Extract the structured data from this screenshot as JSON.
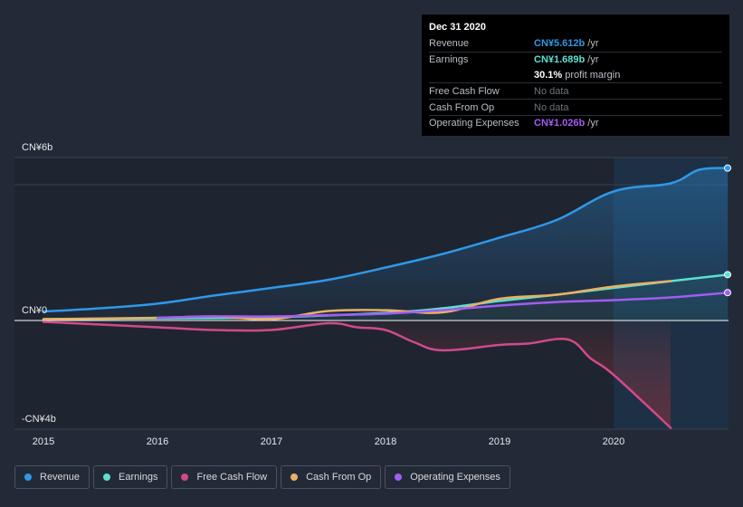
{
  "tooltip": {
    "date": "Dec 31 2020",
    "rows": [
      {
        "name": "Revenue",
        "value": "CN¥5.612b",
        "unit": "/yr",
        "color": "#2f98e8"
      },
      {
        "name": "Earnings",
        "value": "CN¥1.689b",
        "unit": "/yr",
        "color": "#5de0d0"
      },
      {
        "name": "",
        "value": "30.1%",
        "unit": "profit margin",
        "color": "#ffffff"
      },
      {
        "name": "Free Cash Flow",
        "value": "No data",
        "unit": "",
        "color": "#6c7380"
      },
      {
        "name": "Cash From Op",
        "value": "No data",
        "unit": "",
        "color": "#6c7380"
      },
      {
        "name": "Operating Expenses",
        "value": "CN¥1.026b",
        "unit": "/yr",
        "color": "#a25cf2"
      }
    ]
  },
  "legend": [
    {
      "label": "Revenue",
      "color": "#2f98e8"
    },
    {
      "label": "Earnings",
      "color": "#5de0d0"
    },
    {
      "label": "Free Cash Flow",
      "color": "#d04a8a"
    },
    {
      "label": "Cash From Op",
      "color": "#e9b064"
    },
    {
      "label": "Operating Expenses",
      "color": "#a25cf2"
    }
  ],
  "chart_data": {
    "type": "line",
    "ylim": [
      -4,
      6
    ],
    "y_tick_labels": [
      {
        "value": 6,
        "label": "CN¥6b"
      },
      {
        "value": 0,
        "label": "CN¥0"
      },
      {
        "value": -4,
        "label": "-CN¥4b"
      }
    ],
    "x_tick_labels": [
      {
        "value": 2015,
        "label": "2015"
      },
      {
        "value": 2016,
        "label": "2016"
      },
      {
        "value": 2017,
        "label": "2017"
      },
      {
        "value": 2018,
        "label": "2018"
      },
      {
        "value": 2019,
        "label": "2019"
      },
      {
        "value": 2020,
        "label": "2020"
      }
    ],
    "xlim": [
      2014.75,
      2021.0
    ],
    "highlight_start": 2020.0,
    "series": [
      {
        "name": "Revenue",
        "color": "#2f98e8",
        "end_marker": true,
        "points": [
          [
            2015.0,
            0.33
          ],
          [
            2015.5,
            0.45
          ],
          [
            2016.0,
            0.62
          ],
          [
            2016.5,
            0.92
          ],
          [
            2017.0,
            1.2
          ],
          [
            2017.5,
            1.5
          ],
          [
            2018.0,
            1.95
          ],
          [
            2018.5,
            2.45
          ],
          [
            2019.0,
            3.05
          ],
          [
            2019.5,
            3.7
          ],
          [
            2020.0,
            4.75
          ],
          [
            2020.5,
            5.05
          ],
          [
            2020.75,
            5.55
          ],
          [
            2021.0,
            5.612
          ]
        ]
      },
      {
        "name": "Earnings",
        "color": "#5de0d0",
        "end_marker": true,
        "points": [
          [
            2015.0,
            0.05
          ],
          [
            2016.0,
            0.08
          ],
          [
            2017.0,
            0.12
          ],
          [
            2018.0,
            0.28
          ],
          [
            2018.5,
            0.45
          ],
          [
            2019.0,
            0.72
          ],
          [
            2019.5,
            0.95
          ],
          [
            2020.0,
            1.2
          ],
          [
            2020.5,
            1.45
          ],
          [
            2021.0,
            1.689
          ]
        ]
      },
      {
        "name": "Free Cash Flow",
        "color": "#d04a8a",
        "end_marker": false,
        "points": [
          [
            2015.0,
            -0.05
          ],
          [
            2016.0,
            -0.25
          ],
          [
            2016.5,
            -0.35
          ],
          [
            2017.0,
            -0.35
          ],
          [
            2017.5,
            -0.1
          ],
          [
            2017.75,
            -0.25
          ],
          [
            2018.0,
            -0.35
          ],
          [
            2018.25,
            -0.8
          ],
          [
            2018.5,
            -1.1
          ],
          [
            2019.0,
            -0.9
          ],
          [
            2019.25,
            -0.85
          ],
          [
            2019.6,
            -0.7
          ],
          [
            2019.8,
            -1.4
          ],
          [
            2020.0,
            -2.0
          ],
          [
            2020.5,
            -3.95
          ]
        ]
      },
      {
        "name": "Cash From Op",
        "color": "#e9b064",
        "end_marker": false,
        "points": [
          [
            2015.0,
            0.05
          ],
          [
            2016.0,
            0.1
          ],
          [
            2016.5,
            0.15
          ],
          [
            2017.0,
            0.05
          ],
          [
            2017.5,
            0.35
          ],
          [
            2018.0,
            0.38
          ],
          [
            2018.5,
            0.3
          ],
          [
            2019.0,
            0.8
          ],
          [
            2019.5,
            0.95
          ],
          [
            2020.0,
            1.25
          ],
          [
            2020.5,
            1.45
          ]
        ]
      },
      {
        "name": "Operating Expenses",
        "color": "#a25cf2",
        "end_marker": true,
        "points": [
          [
            2016.0,
            0.1
          ],
          [
            2016.5,
            0.15
          ],
          [
            2017.0,
            0.15
          ],
          [
            2017.5,
            0.2
          ],
          [
            2018.0,
            0.25
          ],
          [
            2018.5,
            0.38
          ],
          [
            2019.0,
            0.55
          ],
          [
            2019.5,
            0.68
          ],
          [
            2020.0,
            0.75
          ],
          [
            2020.5,
            0.85
          ],
          [
            2021.0,
            1.026
          ]
        ]
      }
    ]
  }
}
